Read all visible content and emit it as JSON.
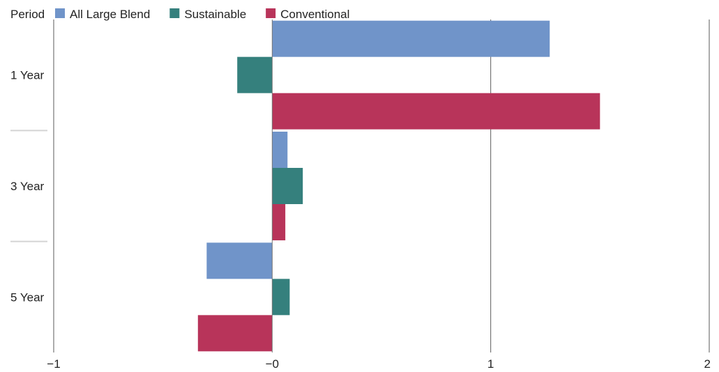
{
  "chart_data": {
    "type": "bar",
    "orientation": "horizontal",
    "category_header": "Period",
    "categories": [
      "1 Year",
      "3 Year",
      "5 Year"
    ],
    "series": [
      {
        "name": "All Large Blend",
        "color": "#7094c9",
        "values": [
          1.27,
          0.07,
          -0.3
        ]
      },
      {
        "name": "Sustainable",
        "color": "#35807d",
        "values": [
          -0.16,
          0.14,
          0.08
        ]
      },
      {
        "name": "Conventional",
        "color": "#b8345a",
        "values": [
          1.5,
          0.06,
          -0.34
        ]
      }
    ],
    "xlim": [
      -1,
      2
    ],
    "xticks": [
      -1,
      0,
      1,
      2
    ],
    "xtick_labels": [
      "−1",
      "−0",
      "1",
      "2"
    ],
    "grid": "vertical gridlines at 1 and 2",
    "legend": "top"
  }
}
